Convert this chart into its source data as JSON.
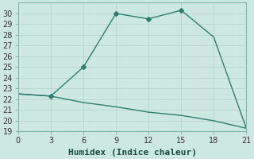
{
  "line1_x": [
    0,
    3,
    6,
    9,
    12,
    15,
    18,
    21
  ],
  "line1_y": [
    22.5,
    22.3,
    25.0,
    30.0,
    29.5,
    30.3,
    27.8,
    19.3
  ],
  "line2_x": [
    0,
    3,
    6,
    9,
    12,
    15,
    18,
    21
  ],
  "line2_y": [
    22.5,
    22.3,
    21.7,
    21.3,
    20.8,
    20.5,
    20.0,
    19.3
  ],
  "line1_markers_x": [
    3,
    6,
    9,
    12,
    15
  ],
  "line1_markers_y": [
    22.3,
    25.0,
    30.0,
    29.5,
    30.3
  ],
  "line_color": "#2e7d6e",
  "xlabel": "Humidex (Indice chaleur)",
  "xlim": [
    0,
    21
  ],
  "ylim": [
    19,
    31
  ],
  "xticks": [
    0,
    3,
    6,
    9,
    12,
    15,
    18,
    21
  ],
  "yticks": [
    19,
    20,
    21,
    22,
    23,
    24,
    25,
    26,
    27,
    28,
    29,
    30
  ],
  "bg_color": "#cde8e2",
  "grid_color": "#b8d4cc",
  "grid_color2": "#d8ecE6",
  "marker": "D",
  "marker_size": 3,
  "line_width": 1.0,
  "xlabel_fontsize": 8,
  "tick_fontsize": 7
}
